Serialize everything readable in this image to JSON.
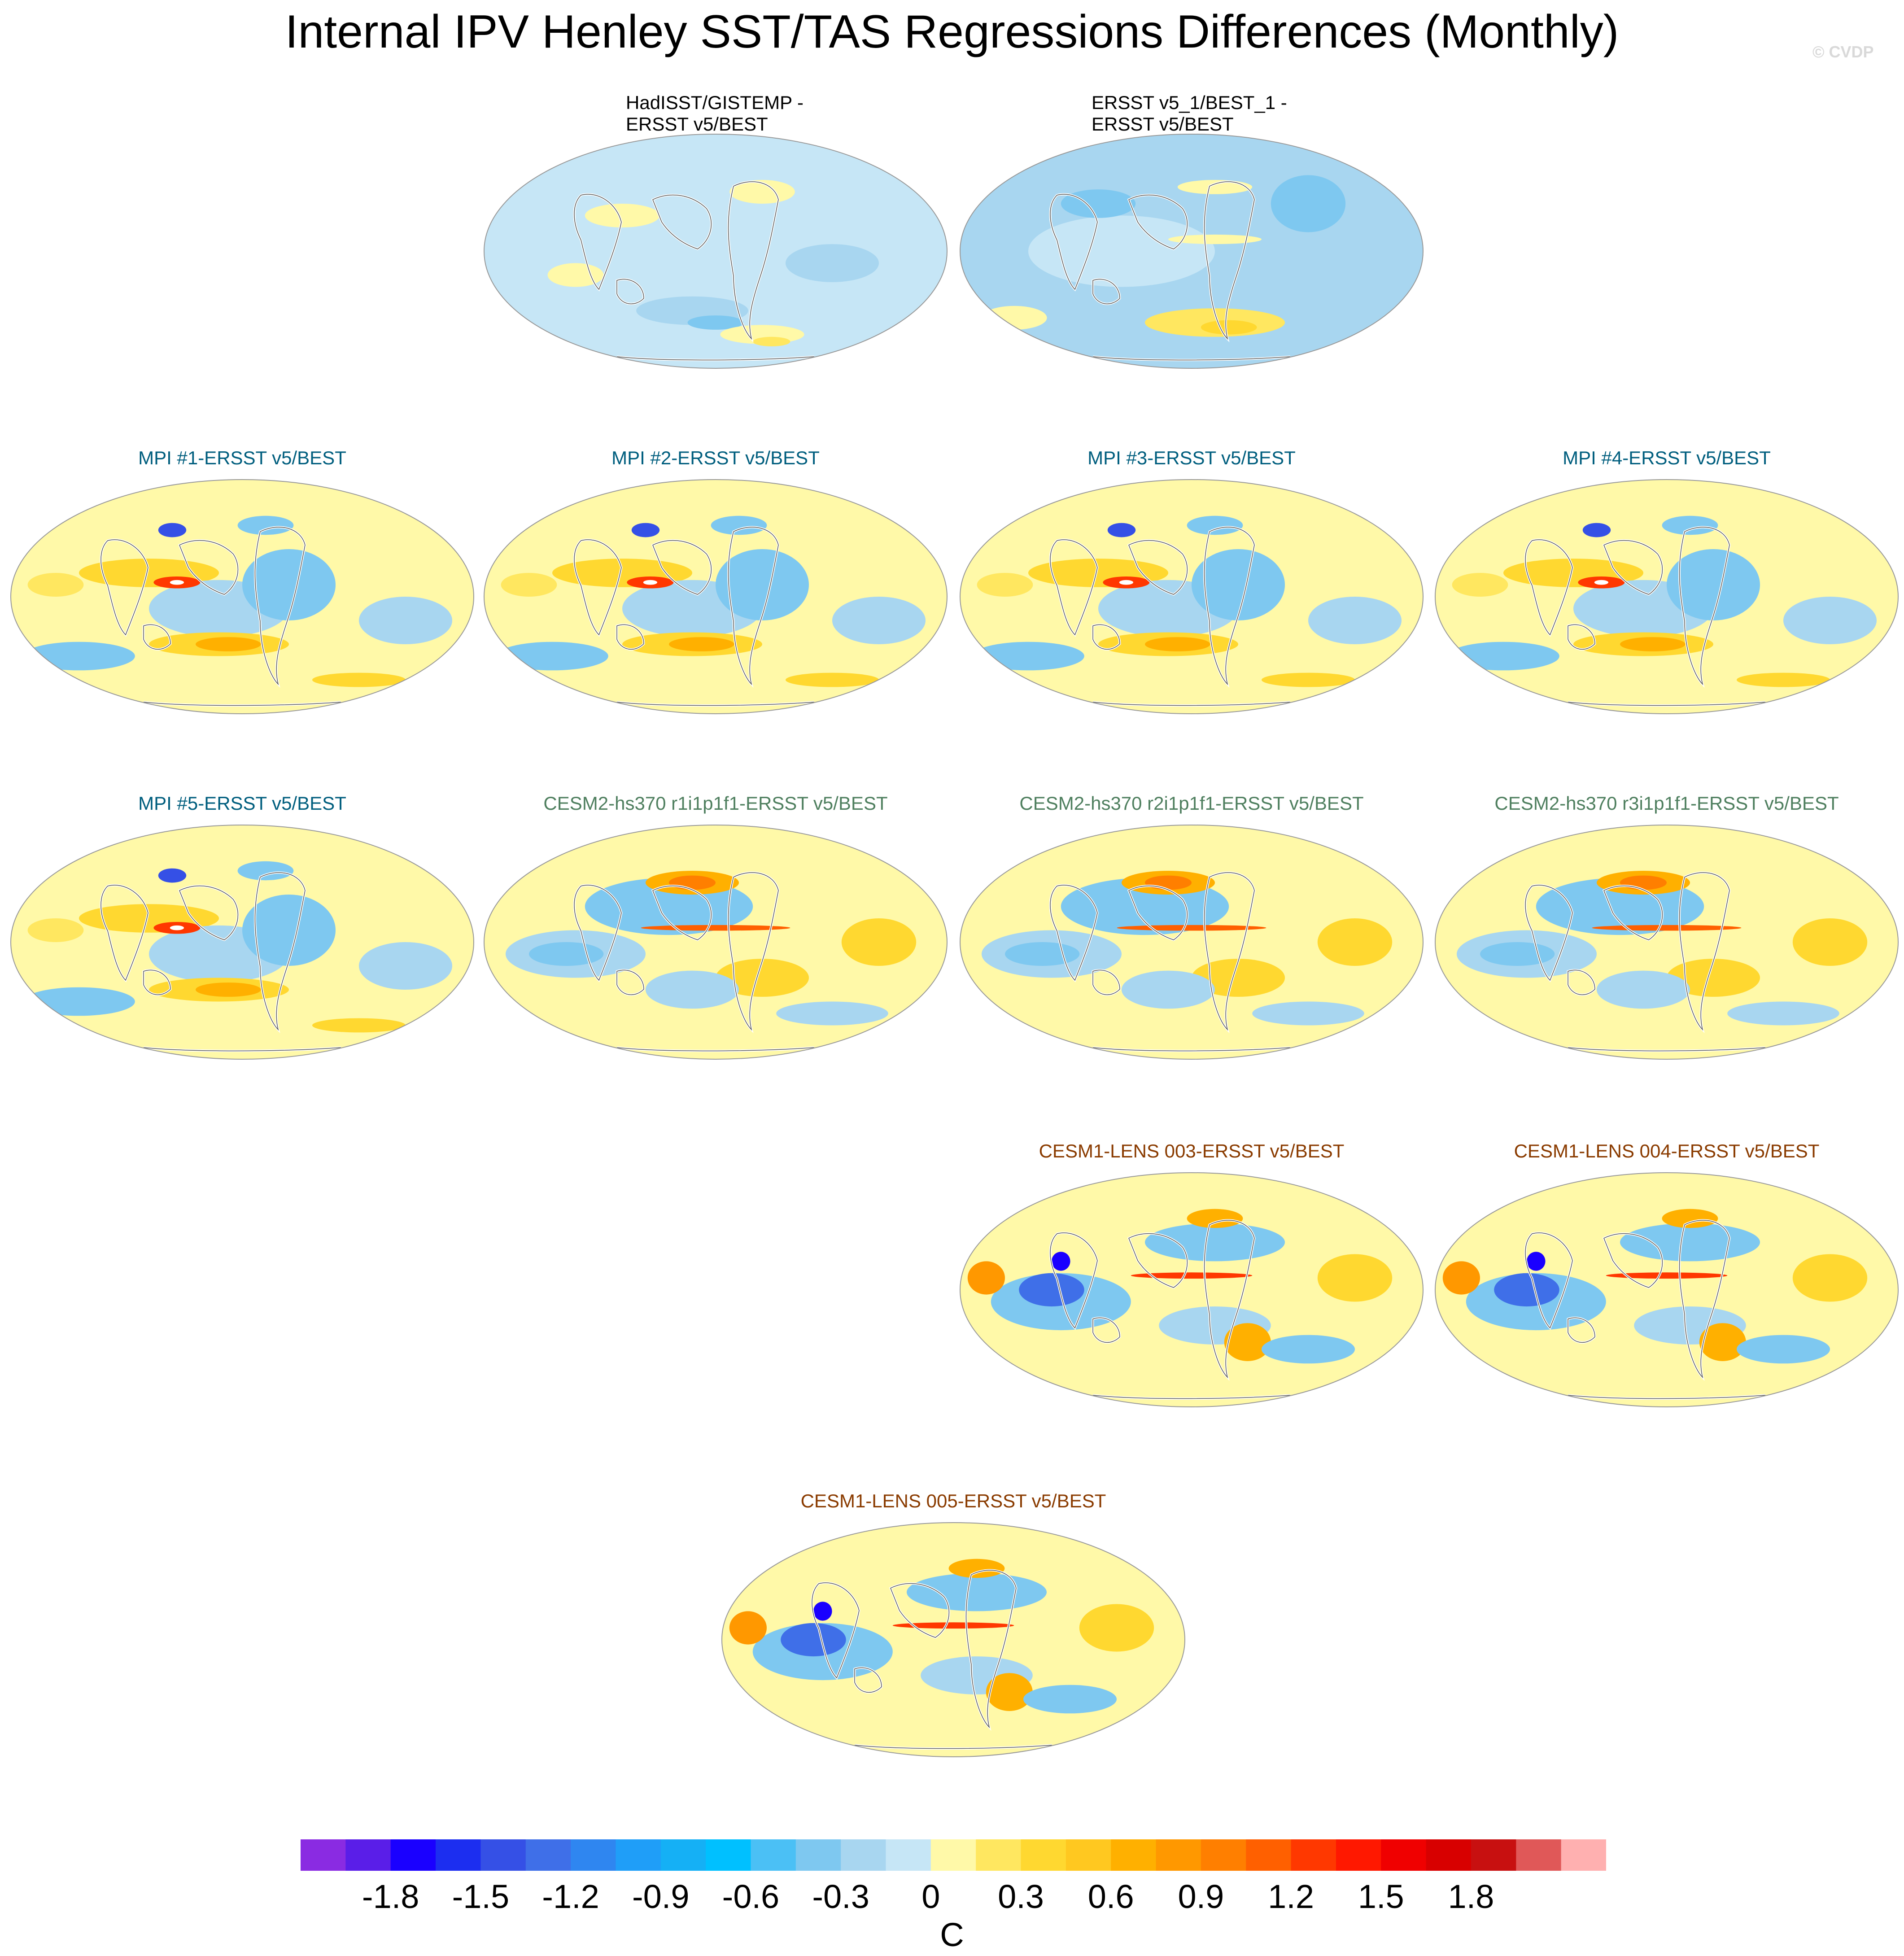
{
  "title": "Internal IPV Henley SST/TAS Regressions Differences (Monthly)",
  "copyright": "© CVDP",
  "panels": [
    {
      "id": "p1",
      "title": "HadISST/GISTEMP -\nERSST v5/BEST",
      "group": "obs",
      "pattern": "had"
    },
    {
      "id": "p2",
      "title": "ERSST v5_1/BEST_1 -\nERSST v5/BEST",
      "group": "obs",
      "pattern": "ersst"
    },
    {
      "id": "p3",
      "title": "MPI #1-ERSST v5/BEST",
      "group": "mpi",
      "pattern": "mpi"
    },
    {
      "id": "p4",
      "title": "MPI #2-ERSST v5/BEST",
      "group": "mpi",
      "pattern": "mpi"
    },
    {
      "id": "p5",
      "title": "MPI #3-ERSST v5/BEST",
      "group": "mpi",
      "pattern": "mpi"
    },
    {
      "id": "p6",
      "title": "MPI #4-ERSST v5/BEST",
      "group": "mpi",
      "pattern": "mpi"
    },
    {
      "id": "p7",
      "title": "MPI #5-ERSST v5/BEST",
      "group": "mpi",
      "pattern": "mpi"
    },
    {
      "id": "p8",
      "title": "CESM2-hs370 r1i1p1f1-ERSST v5/BEST",
      "group": "cesm2",
      "pattern": "cesm2"
    },
    {
      "id": "p9",
      "title": "CESM2-hs370 r2i1p1f1-ERSST v5/BEST",
      "group": "cesm2",
      "pattern": "cesm2"
    },
    {
      "id": "p10",
      "title": "CESM2-hs370 r3i1p1f1-ERSST v5/BEST",
      "group": "cesm2",
      "pattern": "cesm2"
    },
    {
      "id": "p11",
      "title": "CESM1-LENS 003-ERSST v5/BEST",
      "group": "lens",
      "pattern": "lens"
    },
    {
      "id": "p12",
      "title": "CESM1-LENS 004-ERSST v5/BEST",
      "group": "lens",
      "pattern": "lens"
    },
    {
      "id": "p13",
      "title": "CESM1-LENS 005-ERSST v5/BEST",
      "group": "lens",
      "pattern": "lens"
    }
  ],
  "colorbar": {
    "colors": [
      "#8a2be2",
      "#5a1ee8",
      "#1a00ff",
      "#1c2ef0",
      "#3550e6",
      "#3f6fe8",
      "#2f86f0",
      "#1f9ef8",
      "#15b0f5",
      "#00c0ff",
      "#4bc0f5",
      "#7ec8f0",
      "#a8d6f0",
      "#c6e6f6",
      "#fff9a8",
      "#ffe760",
      "#ffd830",
      "#ffc820",
      "#ffb000",
      "#ff9800",
      "#ff7f00",
      "#ff6000",
      "#ff3800",
      "#ff1800",
      "#f00000",
      "#d80000",
      "#c81010",
      "#e05858",
      "#ffb0b0"
    ],
    "labels": [
      "-1.8",
      "-1.5",
      "-1.2",
      "-0.9",
      "-0.6",
      "-0.3",
      "0",
      "0.3",
      "0.6",
      "0.9",
      "1.2",
      "1.5",
      "1.8"
    ],
    "units": "C"
  }
}
